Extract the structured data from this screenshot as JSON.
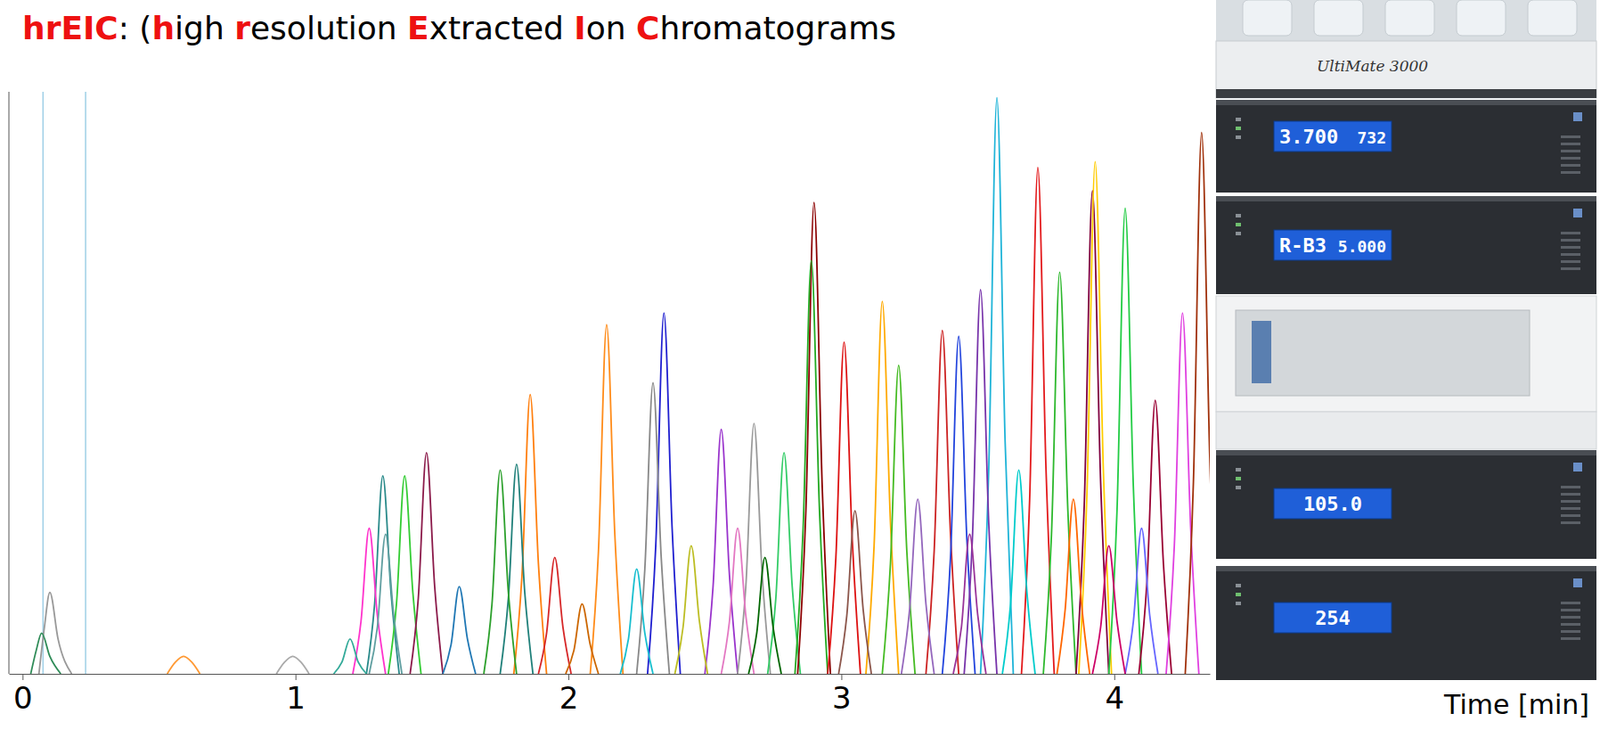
{
  "chart_data": {
    "type": "line",
    "title": [
      {
        "text": "hrEIC",
        "highlight": true
      },
      {
        "text": ": (",
        "highlight": false
      },
      {
        "text": "h",
        "highlight": true
      },
      {
        "text": "igh ",
        "highlight": false
      },
      {
        "text": "r",
        "highlight": true
      },
      {
        "text": "esolution ",
        "highlight": false
      },
      {
        "text": "E",
        "highlight": true
      },
      {
        "text": "xtracted ",
        "highlight": false
      },
      {
        "text": "I",
        "highlight": true
      },
      {
        "text": "on ",
        "highlight": false
      },
      {
        "text": "C",
        "highlight": true
      },
      {
        "text": "hromatograms",
        "highlight": false
      }
    ],
    "xlabel": "Time [min]",
    "xlim": [
      -0.05,
      4.35
    ],
    "xticks": [
      0,
      1,
      2,
      3,
      4
    ],
    "ylim": [
      0,
      100
    ],
    "grid": false,
    "tick_labels": "x",
    "markers_x": [
      0.075,
      0.231
    ],
    "series": [
      {
        "color": "#2a8a8a",
        "x": [
          1.26,
          1.29,
          1.32,
          1.35,
          1.38
        ],
        "values": [
          0,
          12,
          34,
          14,
          0
        ]
      },
      {
        "color": "#33cc33",
        "x": [
          1.34,
          1.37,
          1.4,
          1.43,
          1.46
        ],
        "values": [
          0,
          12,
          34,
          14,
          0
        ]
      },
      {
        "color": "#8b1a4a",
        "x": [
          1.42,
          1.45,
          1.48,
          1.51,
          1.54
        ],
        "values": [
          0,
          13,
          38,
          15,
          0
        ]
      },
      {
        "color": "#ff33cc",
        "x": [
          1.21,
          1.24,
          1.27,
          1.3,
          1.33
        ],
        "values": [
          0,
          9,
          25,
          10,
          0
        ]
      },
      {
        "color": "#5f9ea0",
        "x": [
          1.27,
          1.3,
          1.33,
          1.36,
          1.39
        ],
        "values": [
          0,
          8,
          24,
          10,
          0
        ]
      },
      {
        "color": "#ff7f0e",
        "x": [
          1.8,
          1.83,
          1.86,
          1.89,
          1.92
        ],
        "values": [
          0,
          17,
          48,
          19,
          0
        ]
      },
      {
        "color": "#20807a",
        "x": [
          1.75,
          1.78,
          1.81,
          1.84,
          1.87
        ],
        "values": [
          0,
          13,
          36,
          14,
          0
        ]
      },
      {
        "color": "#2ca02c",
        "x": [
          1.69,
          1.72,
          1.75,
          1.78,
          1.81
        ],
        "values": [
          0,
          12,
          35,
          14,
          0
        ]
      },
      {
        "color": "#ff8c1a",
        "x": [
          2.08,
          2.11,
          2.14,
          2.17,
          2.2
        ],
        "values": [
          0,
          21,
          60,
          24,
          0
        ]
      },
      {
        "color": "#1f1fd0",
        "x": [
          2.29,
          2.32,
          2.35,
          2.38,
          2.41
        ],
        "values": [
          0,
          22,
          62,
          25,
          0
        ]
      },
      {
        "color": "#888888",
        "x": [
          2.25,
          2.28,
          2.31,
          2.34,
          2.37
        ],
        "values": [
          0,
          18,
          50,
          20,
          0
        ]
      },
      {
        "color": "#9933cc",
        "x": [
          2.5,
          2.53,
          2.56,
          2.59,
          2.62
        ],
        "values": [
          0,
          15,
          42,
          17,
          0
        ]
      },
      {
        "color": "#999999",
        "x": [
          2.62,
          2.65,
          2.68,
          2.71,
          2.74
        ],
        "values": [
          0,
          15,
          43,
          17,
          0
        ]
      },
      {
        "color": "#33cc66",
        "x": [
          2.73,
          2.76,
          2.79,
          2.82,
          2.85
        ],
        "values": [
          0,
          13,
          38,
          15,
          0
        ]
      },
      {
        "color": "#8b0000",
        "x": [
          2.84,
          2.87,
          2.9,
          2.93,
          2.96
        ],
        "values": [
          0,
          28,
          81,
          32,
          0
        ]
      },
      {
        "color": "#22aa22",
        "x": [
          2.83,
          2.86,
          2.89,
          2.92,
          2.95
        ],
        "values": [
          0,
          25,
          71,
          28,
          0
        ]
      },
      {
        "color": "#dd1111",
        "x": [
          2.95,
          2.98,
          3.01,
          3.04,
          3.07
        ],
        "values": [
          0,
          20,
          57,
          23,
          0
        ]
      },
      {
        "color": "#ffaa00",
        "x": [
          3.09,
          3.12,
          3.15,
          3.18,
          3.21
        ],
        "values": [
          0,
          22,
          64,
          26,
          0
        ]
      },
      {
        "color": "#44bb22",
        "x": [
          3.15,
          3.18,
          3.21,
          3.24,
          3.27
        ],
        "values": [
          0,
          19,
          53,
          21,
          0
        ]
      },
      {
        "color": "#cc2222",
        "x": [
          3.31,
          3.34,
          3.37,
          3.4,
          3.43
        ],
        "values": [
          0,
          21,
          59,
          24,
          0
        ]
      },
      {
        "color": "#2244dd",
        "x": [
          3.37,
          3.4,
          3.43,
          3.46,
          3.49
        ],
        "values": [
          0,
          20,
          58,
          23,
          0
        ]
      },
      {
        "color": "#1fb4d8",
        "x": [
          3.51,
          3.54,
          3.57,
          3.6,
          3.63
        ],
        "values": [
          0,
          35,
          99,
          40,
          0
        ]
      },
      {
        "color": "#7733aa",
        "x": [
          3.45,
          3.48,
          3.51,
          3.54,
          3.57
        ],
        "values": [
          0,
          23,
          66,
          26,
          0
        ]
      },
      {
        "color": "#e31a1c",
        "x": [
          3.66,
          3.69,
          3.72,
          3.75,
          3.78
        ],
        "values": [
          0,
          30,
          87,
          35,
          0
        ]
      },
      {
        "color": "#2db82d",
        "x": [
          3.74,
          3.77,
          3.8,
          3.83,
          3.86
        ],
        "values": [
          0,
          24,
          69,
          28,
          0
        ]
      },
      {
        "color": "#800040",
        "x": [
          3.86,
          3.89,
          3.92,
          3.95,
          3.98
        ],
        "values": [
          0,
          29,
          83,
          33,
          0
        ]
      },
      {
        "color": "#ffcc00",
        "x": [
          3.87,
          3.9,
          3.93,
          3.96,
          3.99
        ],
        "values": [
          0,
          31,
          88,
          35,
          0
        ]
      },
      {
        "color": "#22cc44",
        "x": [
          3.98,
          4.01,
          4.04,
          4.07,
          4.1
        ],
        "values": [
          0,
          28,
          80,
          32,
          0
        ]
      },
      {
        "color": "#990033",
        "x": [
          4.09,
          4.12,
          4.15,
          4.18,
          4.21
        ],
        "values": [
          0,
          16,
          47,
          19,
          0
        ]
      },
      {
        "color": "#e040e0",
        "x": [
          4.19,
          4.22,
          4.25,
          4.28,
          4.31
        ],
        "values": [
          0,
          22,
          62,
          25,
          0
        ]
      },
      {
        "color": "#a0300a",
        "x": [
          4.26,
          4.29,
          4.32,
          4.35,
          4.38
        ],
        "values": [
          0,
          33,
          93,
          37,
          0
        ]
      },
      {
        "color": "#999999",
        "x": [
          0.06,
          0.08,
          0.1,
          0.13,
          0.18
        ],
        "values": [
          0,
          8,
          14,
          6,
          0
        ]
      },
      {
        "color": "#2e8b57",
        "x": [
          0.03,
          0.05,
          0.07,
          0.1,
          0.14
        ],
        "values": [
          0,
          4,
          7,
          3,
          0
        ]
      },
      {
        "color": "#ff9933",
        "x": [
          0.53,
          0.56,
          0.59,
          0.62,
          0.65
        ],
        "values": [
          0,
          2,
          3,
          2,
          0
        ]
      },
      {
        "color": "#aaaaaa",
        "x": [
          0.93,
          0.96,
          0.99,
          1.02,
          1.05
        ],
        "values": [
          0,
          2,
          3,
          2,
          0
        ]
      },
      {
        "color": "#1f77b4",
        "x": [
          1.54,
          1.57,
          1.6,
          1.63,
          1.66
        ],
        "values": [
          0,
          5,
          15,
          6,
          0
        ]
      },
      {
        "color": "#d62728",
        "x": [
          1.89,
          1.92,
          1.95,
          1.98,
          2.01
        ],
        "values": [
          0,
          7,
          20,
          8,
          0
        ]
      },
      {
        "color": "#17becf",
        "x": [
          2.19,
          2.22,
          2.25,
          2.28,
          2.31
        ],
        "values": [
          0,
          6,
          18,
          7,
          0
        ]
      },
      {
        "color": "#bcbd22",
        "x": [
          2.39,
          2.42,
          2.45,
          2.48,
          2.51
        ],
        "values": [
          0,
          8,
          22,
          9,
          0
        ]
      },
      {
        "color": "#e377c2",
        "x": [
          2.56,
          2.59,
          2.62,
          2.65,
          2.68
        ],
        "values": [
          0,
          9,
          25,
          10,
          0
        ]
      },
      {
        "color": "#8c564b",
        "x": [
          2.99,
          3.02,
          3.05,
          3.08,
          3.11
        ],
        "values": [
          0,
          10,
          28,
          11,
          0
        ]
      },
      {
        "color": "#9467bd",
        "x": [
          3.22,
          3.25,
          3.28,
          3.31,
          3.34
        ],
        "values": [
          0,
          11,
          30,
          12,
          0
        ]
      },
      {
        "color": "#00cccc",
        "x": [
          3.59,
          3.62,
          3.65,
          3.68,
          3.71
        ],
        "values": [
          0,
          12,
          35,
          14,
          0
        ]
      },
      {
        "color": "#ff6600",
        "x": [
          3.79,
          3.82,
          3.85,
          3.88,
          3.91
        ],
        "values": [
          0,
          11,
          30,
          12,
          0
        ]
      },
      {
        "color": "#6666ff",
        "x": [
          4.04,
          4.07,
          4.1,
          4.13,
          4.16
        ],
        "values": [
          0,
          9,
          25,
          10,
          0
        ]
      },
      {
        "color": "#33aa99",
        "x": [
          1.14,
          1.17,
          1.2,
          1.23,
          1.26
        ],
        "values": [
          0,
          2,
          6,
          2,
          0
        ]
      },
      {
        "color": "#cc6600",
        "x": [
          1.99,
          2.02,
          2.05,
          2.08,
          2.11
        ],
        "values": [
          0,
          4,
          12,
          5,
          0
        ]
      },
      {
        "color": "#006600",
        "x": [
          2.66,
          2.69,
          2.72,
          2.75,
          2.78
        ],
        "values": [
          0,
          7,
          20,
          8,
          0
        ]
      },
      {
        "color": "#993399",
        "x": [
          3.41,
          3.44,
          3.47,
          3.5,
          3.53
        ],
        "values": [
          0,
          8,
          24,
          10,
          0
        ]
      },
      {
        "color": "#cc0066",
        "x": [
          3.92,
          3.95,
          3.98,
          4.01,
          4.04
        ],
        "values": [
          0,
          8,
          22,
          9,
          0
        ]
      }
    ]
  },
  "instrument": {
    "label": "UltiMate 3000",
    "displays": [
      [
        "3.700",
        "732"
      ],
      [
        "R-B3",
        "5.000"
      ],
      [
        "105.0"
      ],
      [
        "254"
      ]
    ]
  }
}
